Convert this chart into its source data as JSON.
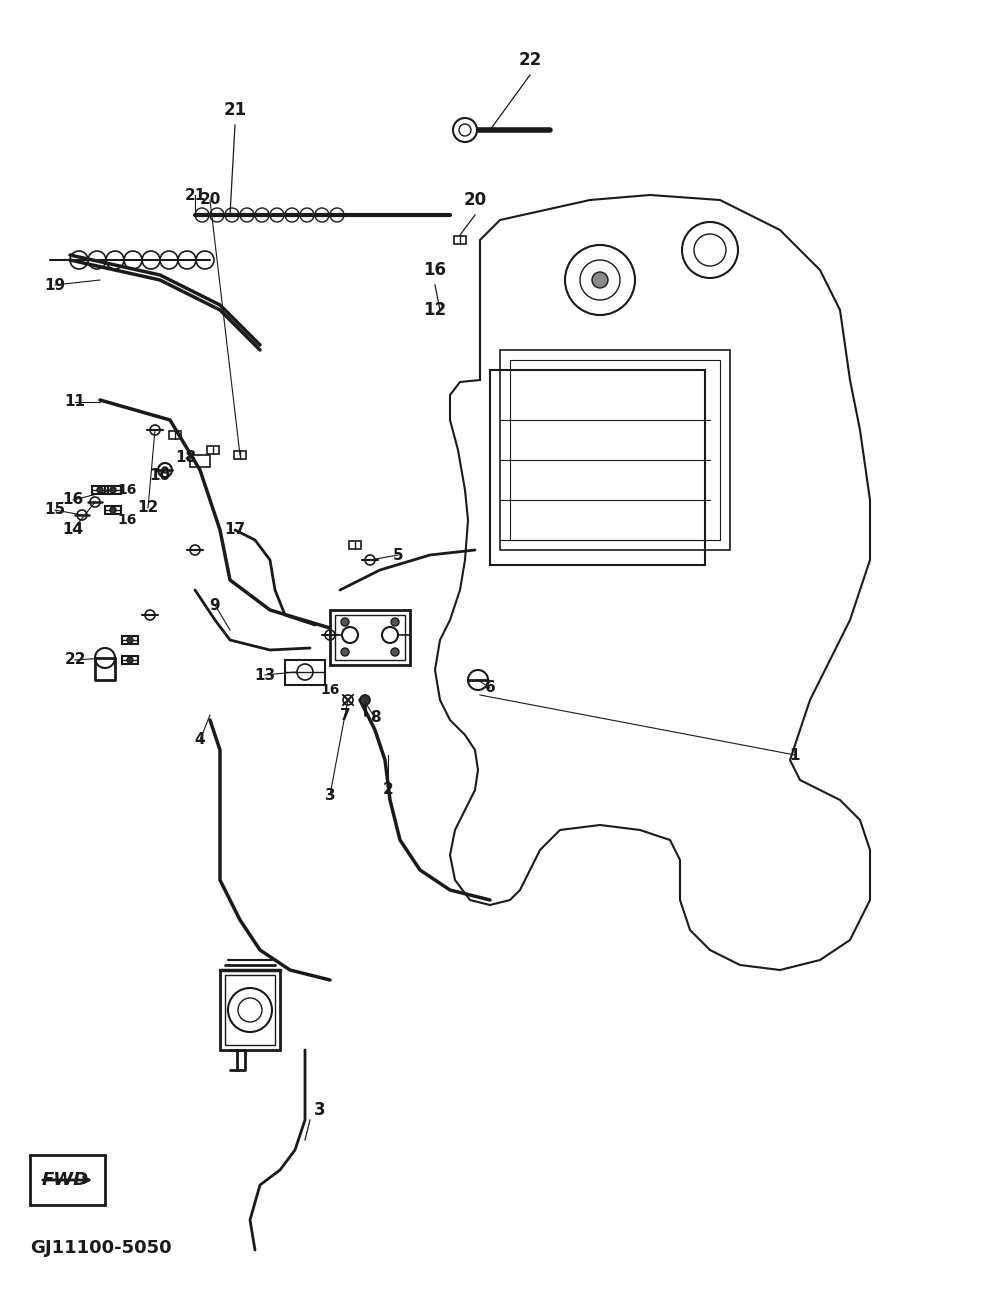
{
  "title": "",
  "background_color": "#ffffff",
  "line_color": "#1a1a1a",
  "diagram_code": "GJ11100-5050",
  "part_numbers": [
    1,
    2,
    3,
    4,
    5,
    6,
    7,
    8,
    9,
    10,
    11,
    12,
    13,
    14,
    15,
    16,
    17,
    18,
    19,
    20,
    21,
    22
  ],
  "fig_width": 9.84,
  "fig_height": 12.96,
  "dpi": 100
}
